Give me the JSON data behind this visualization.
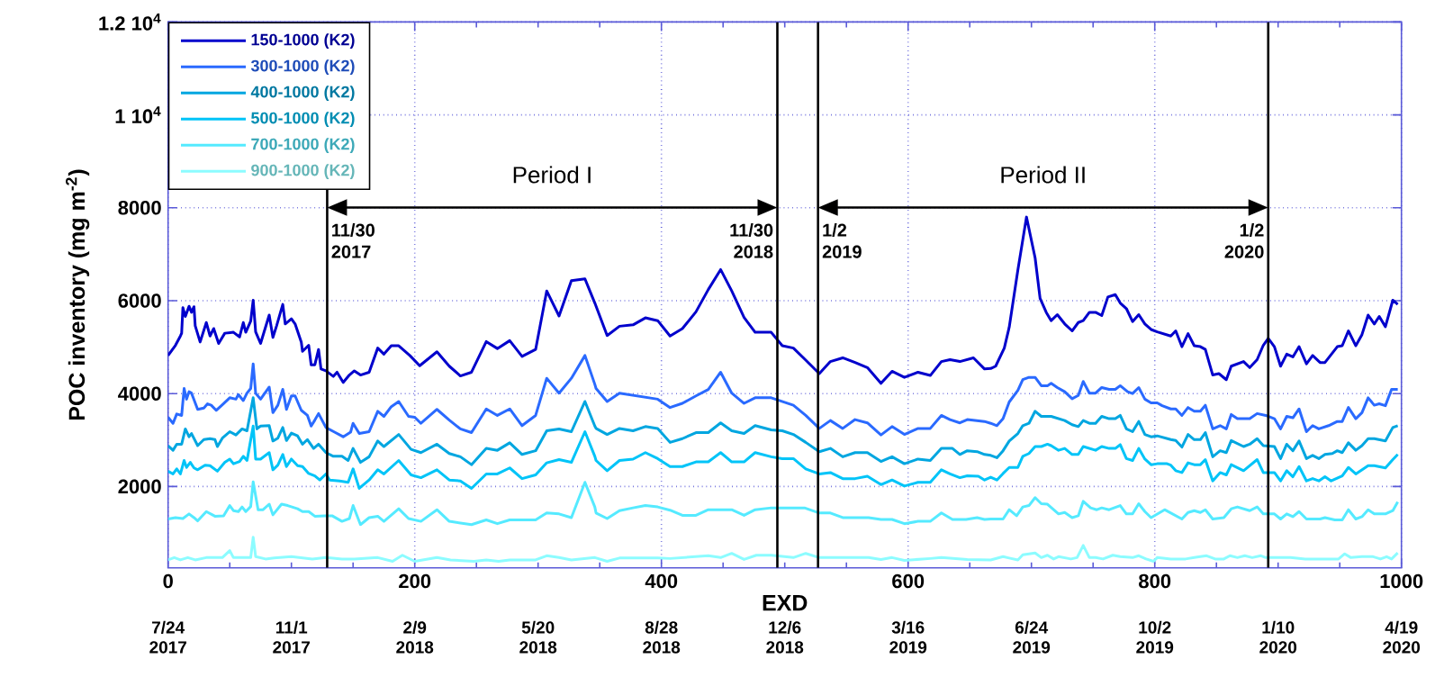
{
  "chart_data": {
    "type": "line",
    "xlabel": "EXD",
    "ylabel": "POC inventory (mg m$^{-2}$)",
    "xlim": [
      0,
      1000
    ],
    "xticks": [
      0,
      200,
      400,
      600,
      800,
      1000
    ],
    "ylim": [
      250,
      12000
    ],
    "yticks": [
      2000,
      4000,
      6000,
      8000,
      {
        "value": 10000,
        "label": "1 10$^{4}$"
      },
      {
        "value": 12000,
        "label": "1.2 10$^{4}$"
      }
    ],
    "x2lim": [
      "2017-07-24",
      "2020-04-19"
    ],
    "x2ticks": [
      {
        "value": "2017-07-24",
        "label": "7/24 2017"
      },
      {
        "value": "2017-11-01",
        "label": "11/1 2017"
      },
      {
        "value": "2018-02-09",
        "label": "2/9 2018"
      },
      {
        "value": "2018-05-20",
        "label": "5/20 2018"
      },
      {
        "value": "2018-08-28",
        "label": "8/28 2018"
      },
      {
        "value": "2018-12-06",
        "label": "12/6 2018"
      },
      {
        "value": "2019-03-16",
        "label": "3/16 2019"
      },
      {
        "value": "2019-06-24",
        "label": "6/24 2019"
      },
      {
        "value": "2019-10-02",
        "label": "10/2 2019"
      },
      {
        "value": "2020-01-10",
        "label": "1/10 2020"
      },
      {
        "value": "2020-04-19",
        "label": "4/19 2020"
      }
    ],
    "grid": true,
    "legend": "top left",
    "ref_lines": [
      {
        "axis": "x2",
        "value": "2017-11-30",
        "label": "11/30 2017"
      },
      {
        "axis": "x2",
        "value": "2018-11-30",
        "label": "11/30 2018"
      },
      {
        "axis": "x2",
        "value": "2019-01-02",
        "label": "1/2 2019"
      },
      {
        "axis": "x2",
        "value": "2020-01-02",
        "label": "1/2 2020"
      }
    ],
    "annotations": [
      "Period I",
      "Period II"
    ],
    "series": [
      {
        "name": "150-1000 (K2)",
        "color": "#0000cc",
        "x": [
          0,
          6,
          10,
          11,
          12,
          14,
          17,
          19,
          21,
          22,
          26,
          31,
          34,
          37,
          41,
          46,
          53,
          58,
          61,
          63,
          67,
          69,
          71,
          75,
          82,
          85,
          88,
          93,
          95,
          100,
          103,
          108,
          109,
          114,
          116,
          119,
          122,
          124,
          128,
          134,
          137,
          142,
          147,
          151,
          156,
          163,
          170,
          175,
          181,
          187,
          196,
          204,
          218,
          228,
          237,
          246,
          258,
          267,
          277,
          287,
          298,
          307,
          317,
          327,
          338,
          346,
          356,
          366,
          377,
          387,
          397,
          407,
          417,
          428,
          438,
          448,
          457,
          467,
          476,
          489,
          498,
          507,
          517,
          528,
          537,
          547,
          557,
          567,
          578,
          587,
          597,
          608,
          618,
          627,
          634,
          642,
          653,
          662,
          667,
          671,
          678,
          682,
          689,
          696,
          703,
          707,
          712,
          716,
          721,
          727,
          733,
          738,
          742,
          747,
          752,
          757,
          762,
          768,
          772,
          777,
          782,
          787,
          792,
          797,
          802,
          813,
          817,
          822,
          827,
          832,
          837,
          841,
          847,
          852,
          858,
          862,
          872,
          877,
          883,
          888,
          892,
          897,
          902,
          907,
          912,
          917,
          923,
          928,
          934,
          938,
          948,
          952,
          957,
          963,
          968,
          973,
          978,
          982,
          987,
          993,
          997
        ],
        "values": [
          4820,
          5040,
          5240,
          5300,
          5850,
          5660,
          5880,
          5750,
          5870,
          5460,
          5110,
          5530,
          5240,
          5400,
          5080,
          5300,
          5320,
          5220,
          5530,
          5320,
          5560,
          6010,
          5330,
          5080,
          5690,
          5210,
          5460,
          5920,
          5500,
          5610,
          5500,
          5110,
          4910,
          5040,
          4620,
          4620,
          4950,
          4530,
          4490,
          4370,
          4460,
          4240,
          4400,
          4490,
          4400,
          4460,
          4980,
          4850,
          5030,
          5030,
          4820,
          4600,
          4900,
          4590,
          4380,
          4460,
          5120,
          4970,
          5140,
          4800,
          4950,
          6210,
          5670,
          6430,
          6470,
          5950,
          5250,
          5450,
          5480,
          5630,
          5570,
          5240,
          5400,
          5760,
          6240,
          6670,
          6210,
          5640,
          5320,
          5320,
          5030,
          4980,
          4720,
          4430,
          4690,
          4770,
          4670,
          4560,
          4220,
          4480,
          4350,
          4460,
          4390,
          4690,
          4730,
          4690,
          4770,
          4530,
          4540,
          4590,
          4980,
          5430,
          6660,
          7800,
          6920,
          6050,
          5750,
          5570,
          5700,
          5500,
          5350,
          5530,
          5570,
          5750,
          5750,
          5680,
          6080,
          6130,
          5950,
          5830,
          5550,
          5700,
          5500,
          5380,
          5330,
          5240,
          5350,
          5010,
          5290,
          5030,
          5010,
          4950,
          4400,
          4430,
          4300,
          4590,
          4690,
          4560,
          4730,
          5040,
          5190,
          5010,
          4590,
          4850,
          4790,
          5010,
          4640,
          4820,
          4670,
          4670,
          5010,
          5030,
          5350,
          5030,
          5270,
          5690,
          5500,
          5660,
          5440,
          6010,
          5920
        ]
      },
      {
        "name": "300-1000 (K2)",
        "color": "#2a6aff",
        "x": [
          0,
          4,
          7,
          11,
          13,
          15,
          17,
          19,
          24,
          29,
          32,
          35,
          39,
          44,
          50,
          55,
          57,
          61,
          64,
          67,
          69,
          71,
          75,
          82,
          85,
          89,
          93,
          96,
          100,
          103,
          108,
          113,
          116,
          119,
          122,
          128,
          135,
          142,
          148,
          150,
          155,
          163,
          170,
          175,
          181,
          187,
          195,
          200,
          205,
          218,
          228,
          237,
          246,
          258,
          267,
          277,
          287,
          298,
          307,
          317,
          327,
          338,
          346,
          347,
          356,
          366,
          397,
          407,
          417,
          428,
          438,
          448,
          457,
          467,
          476,
          489,
          507,
          517,
          528,
          537,
          547,
          557,
          567,
          578,
          587,
          597,
          608,
          618,
          627,
          634,
          642,
          648,
          662,
          667,
          672,
          677,
          682,
          689,
          693,
          698,
          703,
          708,
          713,
          716,
          721,
          727,
          733,
          738,
          742,
          747,
          752,
          757,
          763,
          768,
          772,
          778,
          782,
          787,
          792,
          797,
          802,
          806,
          813,
          817,
          822,
          827,
          832,
          837,
          841,
          847,
          853,
          858,
          862,
          867,
          877,
          883,
          890,
          897,
          902,
          907,
          912,
          917,
          923,
          928,
          933,
          941,
          948,
          952,
          957,
          963,
          968,
          973,
          978,
          982,
          987,
          992,
          997
        ],
        "values": [
          3490,
          3360,
          3560,
          3530,
          4110,
          3880,
          4040,
          4010,
          3660,
          3690,
          3780,
          3750,
          3640,
          3760,
          3910,
          3880,
          3980,
          3850,
          4010,
          4110,
          4640,
          4010,
          3880,
          4140,
          3590,
          3750,
          4090,
          3660,
          3950,
          3950,
          3640,
          3530,
          3300,
          3430,
          3570,
          3270,
          3170,
          3070,
          3170,
          3360,
          3140,
          3180,
          3620,
          3510,
          3720,
          3830,
          3510,
          3490,
          3360,
          3660,
          3430,
          3240,
          3160,
          3670,
          3530,
          3670,
          3310,
          3530,
          4330,
          4010,
          4330,
          4820,
          4200,
          4110,
          3830,
          4010,
          3880,
          3700,
          3790,
          3950,
          4090,
          4460,
          4010,
          3790,
          3910,
          3910,
          3750,
          3530,
          3250,
          3420,
          3250,
          3440,
          3370,
          3110,
          3290,
          3120,
          3250,
          3250,
          3530,
          3440,
          3370,
          3440,
          3400,
          3360,
          3310,
          3460,
          3820,
          4070,
          4300,
          4350,
          4350,
          4170,
          4170,
          4220,
          4130,
          4040,
          3890,
          3960,
          4260,
          4010,
          4010,
          4130,
          4090,
          4090,
          4170,
          4040,
          4000,
          4130,
          3880,
          3800,
          3800,
          3740,
          3670,
          3670,
          3530,
          3700,
          3620,
          3620,
          3750,
          3240,
          3310,
          3240,
          3550,
          3460,
          3460,
          3570,
          3530,
          3460,
          3240,
          3510,
          3480,
          3670,
          3180,
          3310,
          3240,
          3310,
          3400,
          3400,
          3700,
          3460,
          3590,
          3910,
          3750,
          3780,
          3740,
          4090,
          4090
        ]
      },
      {
        "name": "400-1000 (K2)",
        "color": "#00a6e0",
        "x": [
          0,
          4,
          7,
          11,
          14,
          17,
          19,
          24,
          29,
          34,
          38,
          40,
          44,
          50,
          55,
          60,
          64,
          69,
          72,
          75,
          82,
          85,
          89,
          93,
          96,
          100,
          105,
          109,
          113,
          118,
          122,
          128,
          134,
          141,
          146,
          150,
          156,
          163,
          170,
          175,
          187,
          197,
          205,
          218,
          228,
          237,
          246,
          258,
          267,
          277,
          287,
          298,
          307,
          317,
          327,
          338,
          346,
          347,
          356,
          366,
          377,
          387,
          397,
          407,
          417,
          428,
          438,
          448,
          457,
          467,
          476,
          489,
          498,
          507,
          517,
          528,
          537,
          547,
          557,
          567,
          578,
          587,
          597,
          608,
          618,
          627,
          636,
          642,
          648,
          656,
          662,
          667,
          672,
          677,
          682,
          689,
          693,
          698,
          703,
          708,
          716,
          727,
          733,
          738,
          742,
          747,
          752,
          757,
          763,
          768,
          772,
          777,
          782,
          787,
          792,
          797,
          802,
          813,
          817,
          822,
          827,
          832,
          837,
          841,
          847,
          853,
          858,
          862,
          872,
          877,
          883,
          888,
          897,
          902,
          907,
          912,
          917,
          923,
          928,
          933,
          938,
          944,
          948,
          952,
          957,
          963,
          968,
          973,
          978,
          987,
          993,
          997
        ],
        "values": [
          2880,
          2780,
          2910,
          2910,
          3240,
          3070,
          3140,
          2880,
          3010,
          3030,
          3010,
          2860,
          3040,
          3180,
          3110,
          3240,
          3200,
          3910,
          3240,
          3300,
          3310,
          2980,
          3040,
          3270,
          2990,
          3150,
          3090,
          2910,
          3010,
          2820,
          2910,
          2730,
          2650,
          2650,
          2560,
          2820,
          2520,
          2640,
          2980,
          2860,
          3120,
          2800,
          2730,
          2910,
          2710,
          2640,
          2470,
          2820,
          2780,
          2940,
          2690,
          2770,
          3200,
          3240,
          3180,
          3830,
          3300,
          3250,
          3120,
          3250,
          3200,
          3290,
          3250,
          2950,
          3030,
          3160,
          3160,
          3370,
          3200,
          3140,
          3310,
          3220,
          3200,
          3120,
          2950,
          2750,
          2820,
          2640,
          2730,
          2730,
          2540,
          2640,
          2490,
          2590,
          2560,
          2820,
          2820,
          2690,
          2770,
          2750,
          2690,
          2670,
          2620,
          2770,
          2980,
          3140,
          3310,
          3360,
          3620,
          3510,
          3510,
          3420,
          3330,
          3290,
          3420,
          3360,
          3360,
          3510,
          3460,
          3460,
          3530,
          3240,
          3180,
          3400,
          3120,
          3070,
          3090,
          3010,
          2990,
          2850,
          3120,
          3010,
          3010,
          3160,
          2640,
          2770,
          2730,
          2990,
          2860,
          2910,
          3030,
          2880,
          2860,
          2600,
          2910,
          2770,
          2980,
          2600,
          2670,
          2600,
          2690,
          2710,
          2770,
          2730,
          2940,
          2780,
          2880,
          3030,
          3030,
          2980,
          3270,
          3310
        ]
      },
      {
        "name": "500-1000 (K2)",
        "color": "#00c4f8",
        "x": [
          0,
          4,
          7,
          10,
          13,
          15,
          18,
          21,
          24,
          30,
          34,
          40,
          46,
          50,
          53,
          58,
          61,
          64,
          69,
          71,
          75,
          82,
          85,
          89,
          93,
          96,
          100,
          105,
          109,
          114,
          119,
          123,
          128,
          131,
          139,
          146,
          150,
          155,
          163,
          170,
          175,
          187,
          197,
          205,
          218,
          228,
          237,
          246,
          258,
          267,
          277,
          287,
          298,
          307,
          317,
          327,
          338,
          346,
          347,
          356,
          366,
          377,
          387,
          397,
          407,
          417,
          428,
          438,
          448,
          457,
          467,
          476,
          489,
          498,
          507,
          517,
          528,
          537,
          547,
          557,
          567,
          578,
          587,
          597,
          608,
          618,
          627,
          634,
          642,
          648,
          657,
          662,
          667,
          672,
          677,
          682,
          689,
          693,
          698,
          703,
          708,
          713,
          716,
          722,
          727,
          733,
          738,
          742,
          752,
          757,
          763,
          768,
          772,
          777,
          782,
          787,
          792,
          797,
          802,
          810,
          813,
          817,
          822,
          827,
          832,
          837,
          841,
          847,
          853,
          858,
          862,
          872,
          883,
          888,
          897,
          902,
          907,
          912,
          917,
          923,
          928,
          933,
          938,
          943,
          952,
          957,
          963,
          968,
          973,
          978,
          987,
          993,
          997
        ],
        "values": [
          2330,
          2270,
          2380,
          2270,
          2560,
          2410,
          2520,
          2400,
          2360,
          2460,
          2450,
          2330,
          2520,
          2590,
          2490,
          2540,
          2650,
          2560,
          3300,
          2590,
          2590,
          2730,
          2360,
          2460,
          2690,
          2430,
          2590,
          2450,
          2430,
          2280,
          2230,
          2140,
          2270,
          2140,
          2120,
          2090,
          2380,
          1960,
          2140,
          2360,
          2270,
          2560,
          2250,
          2190,
          2360,
          2140,
          2120,
          1960,
          2270,
          2270,
          2400,
          2170,
          2250,
          2510,
          2580,
          2520,
          3180,
          2650,
          2560,
          2340,
          2560,
          2590,
          2730,
          2600,
          2430,
          2430,
          2530,
          2530,
          2730,
          2530,
          2530,
          2730,
          2640,
          2600,
          2600,
          2380,
          2270,
          2300,
          2170,
          2170,
          2220,
          2040,
          2140,
          2010,
          2090,
          2090,
          2360,
          2270,
          2190,
          2230,
          2220,
          2140,
          2200,
          2140,
          2280,
          2410,
          2410,
          2650,
          2710,
          2860,
          2860,
          2910,
          2880,
          2780,
          2820,
          2690,
          2690,
          2860,
          2780,
          2860,
          2820,
          2820,
          2900,
          2600,
          2560,
          2820,
          2590,
          2470,
          2490,
          2490,
          2460,
          2340,
          2300,
          2510,
          2470,
          2470,
          2580,
          2120,
          2300,
          2250,
          2470,
          2340,
          2580,
          2300,
          2300,
          2120,
          2340,
          2210,
          2430,
          2120,
          2170,
          2120,
          2210,
          2120,
          2230,
          2410,
          2270,
          2360,
          2450,
          2450,
          2400,
          2580,
          2690
        ]
      },
      {
        "name": "700-1000 (K2)",
        "color": "#55eaff",
        "x": [
          0,
          6,
          12,
          17,
          21,
          24,
          31,
          38,
          45,
          50,
          53,
          57,
          60,
          63,
          67,
          69,
          73,
          77,
          82,
          85,
          92,
          97,
          105,
          109,
          114,
          119,
          127,
          133,
          141,
          147,
          150,
          156,
          163,
          170,
          175,
          187,
          195,
          205,
          218,
          228,
          246,
          258,
          267,
          277,
          298,
          307,
          317,
          327,
          338,
          346,
          347,
          356,
          366,
          377,
          387,
          397,
          407,
          417,
          428,
          438,
          457,
          467,
          476,
          489,
          516,
          528,
          537,
          547,
          568,
          578,
          587,
          597,
          608,
          618,
          627,
          636,
          647,
          656,
          662,
          667,
          677,
          682,
          688,
          693,
          698,
          703,
          708,
          713,
          722,
          727,
          733,
          738,
          742,
          748,
          753,
          757,
          763,
          772,
          777,
          782,
          787,
          792,
          797,
          808,
          822,
          827,
          832,
          837,
          841,
          847,
          856,
          862,
          867,
          877,
          883,
          888,
          897,
          902,
          907,
          912,
          917,
          923,
          934,
          938,
          946,
          952,
          957,
          963,
          968,
          973,
          978,
          987,
          993,
          997
        ],
        "values": [
          1300,
          1330,
          1310,
          1410,
          1330,
          1260,
          1460,
          1360,
          1370,
          1590,
          1480,
          1460,
          1560,
          1460,
          1570,
          2100,
          1500,
          1500,
          1620,
          1390,
          1620,
          1590,
          1520,
          1460,
          1460,
          1360,
          1370,
          1370,
          1250,
          1310,
          1590,
          1180,
          1330,
          1360,
          1250,
          1520,
          1310,
          1250,
          1500,
          1250,
          1180,
          1280,
          1200,
          1280,
          1280,
          1430,
          1410,
          1330,
          2090,
          1560,
          1430,
          1310,
          1480,
          1540,
          1590,
          1560,
          1490,
          1380,
          1380,
          1500,
          1500,
          1380,
          1500,
          1540,
          1540,
          1430,
          1430,
          1330,
          1330,
          1290,
          1290,
          1200,
          1250,
          1250,
          1430,
          1290,
          1290,
          1330,
          1290,
          1300,
          1300,
          1500,
          1370,
          1560,
          1590,
          1760,
          1630,
          1620,
          1410,
          1440,
          1330,
          1370,
          1680,
          1540,
          1500,
          1540,
          1500,
          1590,
          1410,
          1410,
          1630,
          1460,
          1330,
          1500,
          1300,
          1440,
          1480,
          1440,
          1500,
          1300,
          1330,
          1520,
          1560,
          1480,
          1560,
          1410,
          1410,
          1300,
          1410,
          1350,
          1460,
          1300,
          1300,
          1330,
          1280,
          1280,
          1500,
          1300,
          1350,
          1500,
          1410,
          1410,
          1480,
          1670
        ]
      },
      {
        "name": "900-1000 (K2)",
        "color": "#8cfcff",
        "x": [
          0,
          5,
          10,
          16,
          22,
          31,
          44,
          50,
          53,
          67,
          69,
          71,
          79,
          86,
          100,
          117,
          128,
          141,
          151,
          170,
          182,
          190,
          200,
          218,
          229,
          248,
          258,
          268,
          277,
          298,
          307,
          317,
          327,
          346,
          356,
          366,
          397,
          407,
          438,
          448,
          457,
          467,
          477,
          489,
          507,
          517,
          528,
          568,
          578,
          587,
          597,
          618,
          627,
          648,
          667,
          677,
          682,
          689,
          693,
          703,
          708,
          713,
          718,
          722,
          732,
          737,
          742,
          747,
          752,
          758,
          766,
          772,
          782,
          787,
          793,
          799,
          802,
          813,
          825,
          832,
          842,
          849,
          856,
          861,
          867,
          873,
          879,
          886,
          890,
          910,
          922,
          949,
          954,
          959,
          968,
          977,
          983,
          988,
          992,
          997
        ],
        "values": [
          420,
          470,
          420,
          470,
          420,
          470,
          470,
          620,
          470,
          470,
          910,
          490,
          440,
          460,
          490,
          440,
          470,
          440,
          440,
          470,
          390,
          520,
          390,
          470,
          420,
          390,
          420,
          390,
          420,
          420,
          510,
          470,
          420,
          470,
          390,
          460,
          460,
          450,
          510,
          470,
          560,
          430,
          520,
          520,
          470,
          560,
          470,
          470,
          430,
          470,
          410,
          450,
          470,
          430,
          420,
          490,
          460,
          420,
          530,
          570,
          470,
          520,
          440,
          490,
          440,
          470,
          730,
          470,
          470,
          440,
          520,
          490,
          470,
          510,
          440,
          390,
          470,
          440,
          440,
          470,
          510,
          440,
          440,
          510,
          470,
          510,
          470,
          510,
          470,
          470,
          440,
          440,
          550,
          470,
          490,
          490,
          440,
          490,
          440,
          570
        ]
      }
    ]
  }
}
